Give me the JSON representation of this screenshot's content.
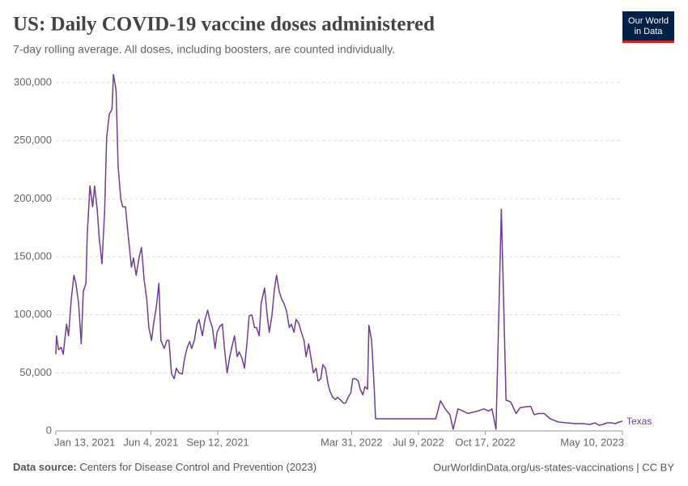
{
  "chart_data": {
    "type": "line",
    "title": "US: Daily COVID-19 vaccine doses administered",
    "subtitle": "7-day rolling average. All doses, including boosters, are counted individually.",
    "logo": [
      "Our World",
      "in Data"
    ],
    "source_label": "Data source:",
    "source": "Centers for Disease Control and Prevention (2023)",
    "footer_right": "OurWorldinData.org/us-states-vaccinations | CC BY",
    "x": [
      "2021-01-13",
      "2021-01-14",
      "2021-01-17",
      "2021-01-21",
      "2021-01-24",
      "2021-01-29",
      "2021-02-01",
      "2021-02-05",
      "2021-02-09",
      "2021-02-12",
      "2021-02-16",
      "2021-02-20",
      "2021-02-23",
      "2021-02-27",
      "2021-03-01",
      "2021-03-05",
      "2021-03-09",
      "2021-03-12",
      "2021-03-16",
      "2021-03-19",
      "2021-03-23",
      "2021-03-27",
      "2021-03-30",
      "2021-04-03",
      "2021-04-07",
      "2021-04-09",
      "2021-04-13",
      "2021-04-16",
      "2021-04-20",
      "2021-04-23",
      "2021-04-27",
      "2021-05-01",
      "2021-05-06",
      "2021-05-09",
      "2021-05-13",
      "2021-05-18",
      "2021-05-21",
      "2021-05-25",
      "2021-05-29",
      "2021-06-01",
      "2021-06-05",
      "2021-06-08",
      "2021-06-12",
      "2021-06-16",
      "2021-06-19",
      "2021-06-24",
      "2021-06-28",
      "2021-07-01",
      "2021-07-05",
      "2021-07-09",
      "2021-07-12",
      "2021-07-16",
      "2021-07-21",
      "2021-07-24",
      "2021-07-28",
      "2021-08-01",
      "2021-08-04",
      "2021-08-08",
      "2021-08-12",
      "2021-08-15",
      "2021-08-20",
      "2021-08-24",
      "2021-08-28",
      "2021-08-31",
      "2021-09-04",
      "2021-09-08",
      "2021-09-11",
      "2021-09-15",
      "2021-09-19",
      "2021-09-22",
      "2021-09-26",
      "2021-09-30",
      "2021-10-03",
      "2021-10-07",
      "2021-10-11",
      "2021-10-14",
      "2021-10-18",
      "2021-10-22",
      "2021-10-26",
      "2021-10-29",
      "2021-11-02",
      "2021-11-06",
      "2021-11-09",
      "2021-11-13",
      "2021-11-16",
      "2021-11-21",
      "2021-11-25",
      "2021-11-28",
      "2021-12-02",
      "2021-12-06",
      "2021-12-09",
      "2021-12-13",
      "2021-12-17",
      "2021-12-20",
      "2021-12-24",
      "2021-12-28",
      "2021-12-31",
      "2022-01-04",
      "2022-01-07",
      "2022-01-11",
      "2022-01-15",
      "2022-01-19",
      "2022-01-22",
      "2022-01-26",
      "2022-01-30",
      "2022-02-02",
      "2022-02-06",
      "2022-02-09",
      "2022-02-13",
      "2022-02-16",
      "2022-02-20",
      "2022-02-24",
      "2022-02-27",
      "2022-03-03",
      "2022-03-07",
      "2022-03-10",
      "2022-03-14",
      "2022-03-19",
      "2022-03-22",
      "2022-03-26",
      "2022-03-30",
      "2022-04-02",
      "2022-04-06",
      "2022-04-10",
      "2022-04-13",
      "2022-04-17",
      "2022-04-20",
      "2022-04-24",
      "2022-04-26",
      "2022-04-30",
      "2022-05-04",
      "2022-05-06",
      "2022-08-04",
      "2022-08-11",
      "2022-08-18",
      "2022-08-25",
      "2022-08-30",
      "2022-09-06",
      "2022-09-14",
      "2022-09-21",
      "2022-10-05",
      "2022-10-15",
      "2022-10-22",
      "2022-10-27",
      "2022-11-02",
      "2022-11-10",
      "2022-11-17",
      "2022-11-24",
      "2022-12-02",
      "2022-12-08",
      "2022-12-20",
      "2022-12-24",
      "2022-12-29",
      "2023-01-05",
      "2023-01-13",
      "2023-01-22",
      "2023-02-03",
      "2023-02-16",
      "2023-02-28",
      "2023-03-12",
      "2023-03-23",
      "2023-03-30",
      "2023-04-05",
      "2023-04-11",
      "2023-04-17",
      "2023-04-23",
      "2023-04-29",
      "2023-05-05",
      "2023-05-10"
    ],
    "series": [
      {
        "name": "Texas",
        "color": "#6d3e91",
        "values": [
          66000,
          82000,
          70000,
          72000,
          66000,
          92000,
          82000,
          113000,
          134000,
          127000,
          110000,
          75000,
          120000,
          127000,
          169000,
          211000,
          193000,
          211000,
          190000,
          165000,
          144000,
          190000,
          253000,
          273000,
          277000,
          307000,
          294000,
          228000,
          200000,
          193000,
          193000,
          169000,
          141000,
          149000,
          134000,
          151000,
          158000,
          130000,
          113000,
          89000,
          78000,
          92000,
          106000,
          127000,
          78000,
          71000,
          78000,
          78000,
          49000,
          45000,
          54000,
          50000,
          49000,
          61000,
          71000,
          77000,
          71000,
          78000,
          92000,
          96000,
          82000,
          96000,
          104000,
          96000,
          89000,
          71000,
          85000,
          90000,
          92000,
          71000,
          50000,
          64000,
          72000,
          82000,
          64000,
          68000,
          63000,
          54000,
          78000,
          99000,
          100000,
          89000,
          89000,
          82000,
          110000,
          123000,
          99000,
          85000,
          99000,
          123000,
          134000,
          120000,
          113000,
          110000,
          103000,
          89000,
          92000,
          85000,
          96000,
          93000,
          85000,
          78000,
          64000,
          75000,
          61000,
          50000,
          54000,
          43000,
          45000,
          57000,
          54000,
          40000,
          34000,
          29000,
          27000,
          29000,
          27000,
          24000,
          24000,
          29000,
          33000,
          45000,
          45000,
          43000,
          36000,
          31000,
          38000,
          36000,
          91000,
          78000,
          36000,
          10500,
          10500,
          26000,
          19000,
          14000,
          1400,
          19000,
          17000,
          15000,
          17000,
          19000,
          17000,
          19000,
          1400,
          191000,
          26500,
          25000,
          15000,
          20000,
          21000,
          21000,
          14000,
          15000,
          15000,
          10500,
          7700,
          7000,
          6300,
          6300,
          5600,
          7000,
          4900,
          5600,
          7000,
          7000,
          6300,
          7700,
          8400
        ]
      }
    ],
    "xlim": [
      "2021-01-13",
      "2023-05-10"
    ],
    "xticks": [
      {
        "value": "2021-01-13",
        "label": "Jan 13, 2021"
      },
      {
        "value": "2021-06-04",
        "label": "Jun 4, 2021"
      },
      {
        "value": "2021-09-12",
        "label": "Sep 12, 2021"
      },
      {
        "value": "2022-03-31",
        "label": "Mar 31, 2022"
      },
      {
        "value": "2022-07-09",
        "label": "Jul 9, 2022"
      },
      {
        "value": "2022-10-17",
        "label": "Oct 17, 2022"
      },
      {
        "value": "2023-05-10",
        "label": "May 10, 2023"
      }
    ],
    "ylim": [
      0,
      300000
    ],
    "yticks": [
      0,
      {
        "value": 50000,
        "label": "50,000"
      },
      {
        "value": 100000,
        "label": "100,000"
      },
      {
        "value": 150000,
        "label": "150,000"
      },
      {
        "value": 200000,
        "label": "200,000"
      },
      {
        "value": 250000,
        "label": "250,000"
      },
      {
        "value": 300000,
        "label": "300,000"
      }
    ],
    "grid": true
  }
}
